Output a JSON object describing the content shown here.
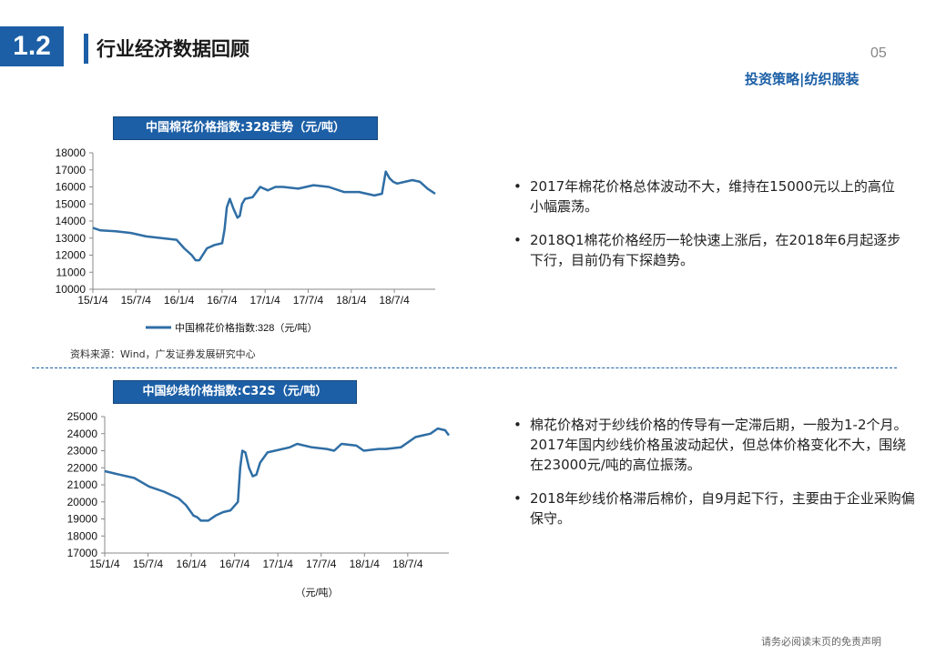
{
  "header": {
    "section_number": "1.2",
    "title": "行业经济数据回顾",
    "page_number": "05",
    "subtitle": "投资策略|纺织服装"
  },
  "chart1": {
    "title": "中国棉花价格指数:328走势（元/吨）",
    "source": "资料来源：Wind，广发证券发展研究中心",
    "legend": "中国棉花价格指数:328（元/吨）"
  },
  "chart2": {
    "title": "中国纱线价格指数:C32S（元/吨）",
    "unit_label": "（元/吨）"
  },
  "bullets1": [
    "2017年棉花价格总体波动不大，维持在15000元以上的高位小幅震荡。",
    "2018Q1棉花价格经历一轮快速上涨后，在2018年6月起逐步下行，目前仍有下探趋势。"
  ],
  "bullets2": [
    "棉花价格对于纱线价格的传导有一定滞后期，一般为1-2个月。2017年国内纱线价格虽波动起伏，但总体价格变化不大，围绕在23000元/吨的高位振荡。",
    "2018年纱线价格滞后棉价，自9月起下行，主要由于企业采购偏保守。"
  ],
  "footer": {
    "disclaimer": "请务必阅读末页的免责声明"
  },
  "colors": {
    "accent": "#1c5fa6",
    "series": "#2f6ea5"
  },
  "chart_data": [
    {
      "type": "line",
      "title": "中国棉花价格指数:328走势（元/吨）",
      "x_ticks": [
        "15/1/4",
        "15/7/4",
        "16/1/4",
        "16/7/4",
        "17/1/4",
        "17/7/4",
        "18/1/4",
        "18/7/4"
      ],
      "x_range": [
        0,
        45
      ],
      "ylim": [
        10000,
        18000
      ],
      "y_ticks": [
        10000,
        11000,
        12000,
        13000,
        14000,
        15000,
        16000,
        17000,
        18000
      ],
      "series": [
        {
          "name": "中国棉花价格指数:328（元/吨）",
          "x": [
            0,
            1,
            3,
            5,
            7,
            9,
            11,
            12,
            13,
            13.5,
            14,
            15,
            16,
            17,
            17.3,
            17.6,
            18,
            18.5,
            19,
            19.3,
            19.6,
            20,
            21,
            22,
            23,
            24,
            25,
            27,
            29,
            31,
            33,
            35,
            36,
            37,
            38,
            38.5,
            39,
            39.5,
            40,
            41,
            42,
            43,
            44,
            45
          ],
          "y": [
            13600,
            13450,
            13400,
            13300,
            13100,
            13000,
            12900,
            12400,
            12000,
            11700,
            11700,
            12400,
            12600,
            12700,
            13500,
            14800,
            15300,
            14700,
            14200,
            14300,
            15000,
            15300,
            15400,
            16000,
            15800,
            16000,
            16000,
            15900,
            16100,
            16000,
            15700,
            15700,
            15600,
            15500,
            15600,
            16900,
            16500,
            16300,
            16200,
            16300,
            16400,
            16300,
            15900,
            15600
          ]
        }
      ]
    },
    {
      "type": "line",
      "title": "中国纱线价格指数:C32S（元/吨）",
      "x_ticks": [
        "15/1/4",
        "15/7/4",
        "16/1/4",
        "16/7/4",
        "17/1/4",
        "17/7/4",
        "18/1/4",
        "18/7/4"
      ],
      "x_range": [
        0,
        46.5
      ],
      "ylim": [
        17000,
        25000
      ],
      "y_ticks": [
        17000,
        18000,
        19000,
        20000,
        21000,
        22000,
        23000,
        24000,
        25000
      ],
      "series": [
        {
          "name": "中国纱线价格指数:C32S",
          "x": [
            0,
            1,
            2,
            4,
            6,
            8,
            10,
            11,
            12,
            12.5,
            13,
            14,
            15,
            16,
            17,
            18,
            18.3,
            18.6,
            19,
            19.5,
            20,
            20.5,
            21,
            22,
            23,
            25,
            26,
            28,
            30,
            31,
            32,
            34,
            35,
            37,
            38,
            40,
            42,
            43,
            44,
            45,
            46,
            46.5
          ],
          "y": [
            21800,
            21700,
            21600,
            21400,
            20900,
            20600,
            20200,
            19800,
            19200,
            19100,
            18900,
            18900,
            19200,
            19400,
            19500,
            20000,
            22000,
            23000,
            22900,
            22000,
            21500,
            21600,
            22300,
            22900,
            23000,
            23200,
            23400,
            23200,
            23100,
            23000,
            23400,
            23300,
            23000,
            23100,
            23100,
            23200,
            23800,
            23900,
            24000,
            24300,
            24200,
            23900
          ]
        }
      ]
    }
  ]
}
